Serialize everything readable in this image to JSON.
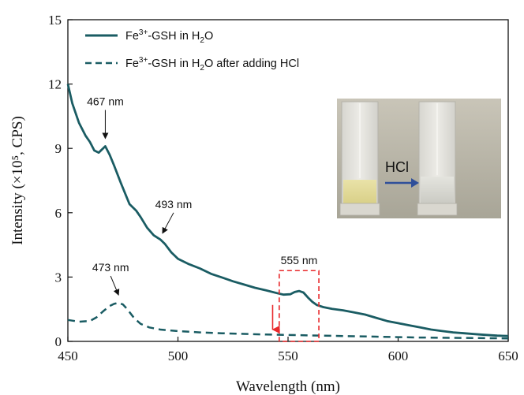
{
  "chart_data": {
    "type": "line",
    "xlabel": "Wavelength (nm)",
    "ylabel": "Intensity (×10⁵, CPS)",
    "xlim": [
      450,
      650
    ],
    "ylim": [
      0,
      15
    ],
    "xticks": [
      450,
      500,
      550,
      600,
      650
    ],
    "yticks": [
      0,
      3,
      6,
      9,
      12,
      15
    ],
    "grid": false,
    "legend_position": "top-left",
    "series": [
      {
        "name": "Fe³⁺-GSH in H₂O",
        "legend": {
          "prefix": "Fe",
          "sup": "3+",
          "mid": "-GSH in H",
          "sub": "2",
          "suffix": "O"
        },
        "line_style": "solid",
        "color": "#1a5c63",
        "x": [
          450,
          452,
          455,
          458,
          460,
          462,
          464,
          466,
          467,
          469,
          471,
          474,
          478,
          481,
          483,
          486,
          489,
          492,
          494,
          497,
          500,
          505,
          510,
          515,
          520,
          525,
          530,
          535,
          540,
          545,
          548,
          551,
          553,
          555,
          557,
          559,
          561,
          563,
          566,
          570,
          575,
          580,
          585,
          590,
          595,
          600,
          605,
          610,
          615,
          620,
          625,
          630,
          635,
          640,
          645,
          650
        ],
        "y": [
          12.0,
          11.1,
          10.2,
          9.6,
          9.3,
          8.9,
          8.8,
          9.0,
          9.1,
          8.7,
          8.2,
          7.4,
          6.4,
          6.1,
          5.8,
          5.3,
          4.95,
          4.75,
          4.55,
          4.15,
          3.85,
          3.6,
          3.4,
          3.15,
          2.98,
          2.8,
          2.65,
          2.5,
          2.38,
          2.25,
          2.18,
          2.2,
          2.3,
          2.35,
          2.28,
          2.05,
          1.85,
          1.7,
          1.6,
          1.52,
          1.45,
          1.35,
          1.25,
          1.1,
          0.95,
          0.85,
          0.75,
          0.65,
          0.55,
          0.48,
          0.42,
          0.38,
          0.34,
          0.3,
          0.27,
          0.25
        ]
      },
      {
        "name": "Fe³⁺-GSH in H₂O after adding HCl",
        "legend": {
          "prefix": "Fe",
          "sup": "3+",
          "mid": "-GSH in H",
          "sub": "2",
          "suffix": "O after adding HCl"
        },
        "line_style": "dashed",
        "color": "#1a5c63",
        "x": [
          450,
          455,
          460,
          463,
          466,
          469,
          471,
          473,
          475,
          477,
          480,
          483,
          487,
          492,
          500,
          510,
          520,
          530,
          540,
          550,
          560,
          570,
          580,
          590,
          600,
          610,
          620,
          630,
          640,
          650
        ],
        "y": [
          1.0,
          0.92,
          0.95,
          1.12,
          1.4,
          1.65,
          1.75,
          1.8,
          1.72,
          1.5,
          1.1,
          0.82,
          0.65,
          0.55,
          0.48,
          0.42,
          0.38,
          0.35,
          0.32,
          0.3,
          0.28,
          0.26,
          0.24,
          0.22,
          0.2,
          0.18,
          0.17,
          0.16,
          0.15,
          0.14
        ]
      }
    ],
    "annotations": [
      {
        "text": "467 nm",
        "x": 467,
        "y": 9.1
      },
      {
        "text": "493 nm",
        "x": 493,
        "y": 4.75
      },
      {
        "text": "473 nm",
        "x": 473,
        "y": 1.8
      },
      {
        "text": "555 nm",
        "x": 555,
        "y": 2.35
      }
    ],
    "highlight_box": {
      "x_range": [
        546,
        564
      ],
      "y_range": [
        0,
        3.3
      ],
      "color": "#e8282b"
    },
    "arrow": {
      "x": 543,
      "y_from": 1.7,
      "y_to": 0.55,
      "color": "#e8282b"
    },
    "inset": {
      "label": "HCl",
      "arrow_color": "#2f4f9a"
    }
  }
}
